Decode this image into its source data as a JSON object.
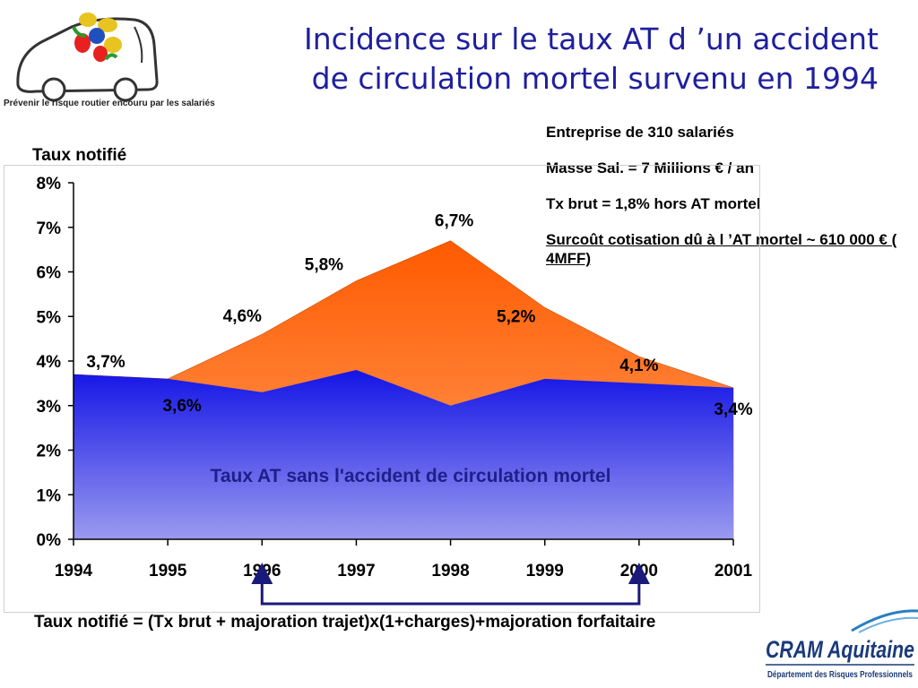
{
  "logo": {
    "caption": "Prévenir le risque routier encouru par les salariés"
  },
  "title": {
    "line1": "Incidence sur le taux AT d ’un accident",
    "line2": "de circulation mortel survenu en 1994"
  },
  "info": {
    "line1": "Entreprise de 310 salariés",
    "line2": "Masse Sal. =  7 Millions € / an",
    "line3": "Tx brut = 1,8% hors AT mortel",
    "line4": "Surcoût cotisation dû à l ’AT mortel ~ 610 000 € ( 4MFF)"
  },
  "formula": "Taux notifié = (Tx brut + majoration trajet)x(1+charges)+majoration forfaitaire",
  "footer_logo": {
    "name": "CRAM Aquitaine",
    "subtitle": "Département des Risques Professionnels"
  },
  "colors": {
    "title": "#1f1f9e",
    "blue_top": "#1414e6",
    "blue_bottom": "#9a9af0",
    "orange_top": "#ff5a00",
    "orange_bottom": "#ffa060",
    "inside_label": "#1f1f8a"
  },
  "chart_data": {
    "type": "area",
    "ylabel": "Taux notifié",
    "ylim": [
      0,
      8
    ],
    "yticks": [
      "0%",
      "1%",
      "2%",
      "3%",
      "4%",
      "5%",
      "6%",
      "7%",
      "8%"
    ],
    "categories": [
      "1994",
      "1995",
      "1996",
      "1997",
      "1998",
      "1999",
      "2000",
      "2001"
    ],
    "series": [
      {
        "name": "Taux AT sans l'accident de circulation mortel",
        "values": [
          3.7,
          3.6,
          3.3,
          3.8,
          3.0,
          3.6,
          3.5,
          3.4
        ]
      },
      {
        "name": "",
        "values": [
          3.7,
          3.6,
          4.6,
          5.8,
          6.7,
          5.2,
          4.1,
          3.4
        ]
      }
    ],
    "data_labels": [
      "3,7%",
      "3,6%",
      "4,6%",
      "5,8%",
      "6,7%",
      "5,2%",
      "4,1%",
      "3,4%"
    ],
    "bracket": {
      "from": "1996",
      "to": "2000"
    },
    "grid": false,
    "legend": "none"
  }
}
